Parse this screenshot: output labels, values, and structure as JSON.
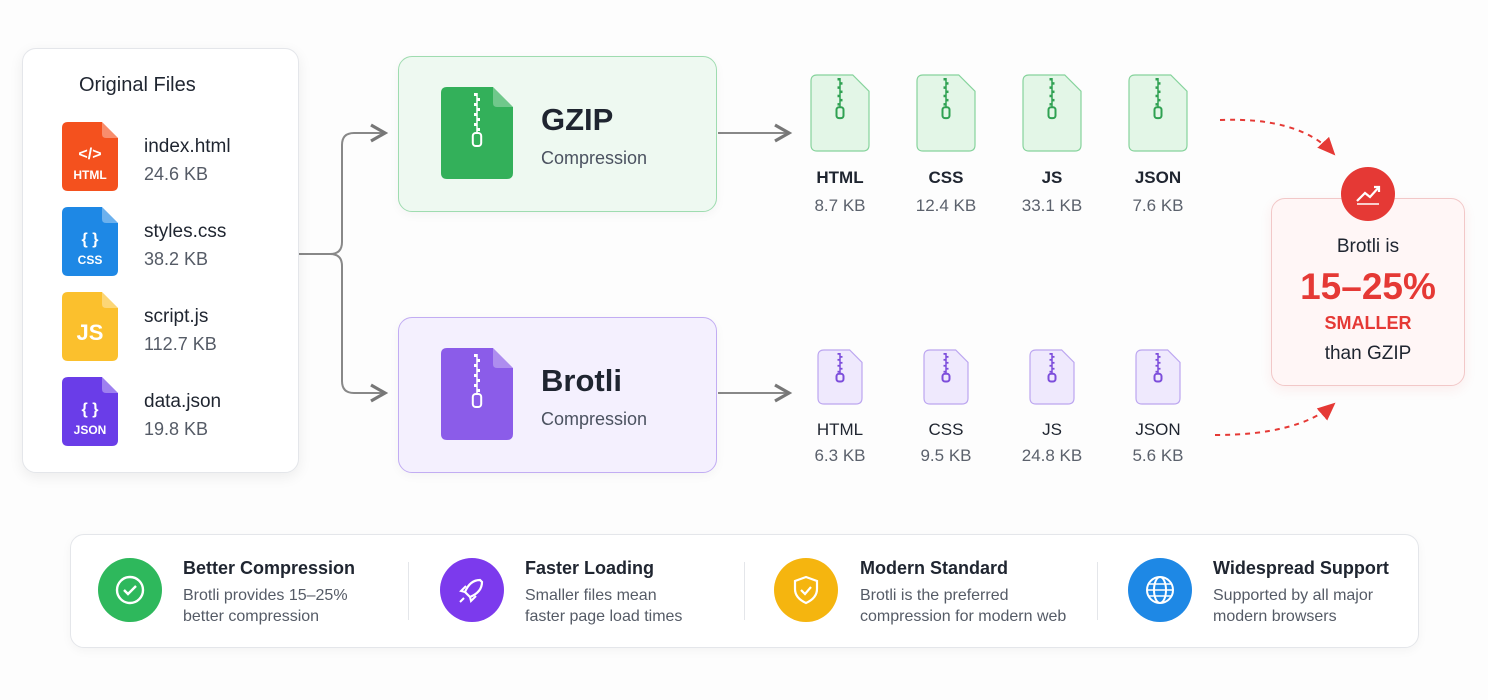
{
  "original_files": {
    "title": "Original Files",
    "files": [
      {
        "icon": "</>",
        "tag": "HTML",
        "name": "index.html",
        "size": "24.6 KB"
      },
      {
        "icon": "{ }",
        "tag": "CSS",
        "name": "styles.css",
        "size": "38.2 KB"
      },
      {
        "icon": "JS",
        "name": "script.js",
        "size": "112.7 KB"
      },
      {
        "icon": "{ }",
        "tag": "JSON",
        "name": "data.json",
        "size": "19.8 KB"
      }
    ]
  },
  "gzip": {
    "title": "GZIP",
    "subtitle": "Compression",
    "outputs": [
      {
        "label": "HTML",
        "size": "8.7 KB"
      },
      {
        "label": "CSS",
        "size": "12.4 KB"
      },
      {
        "label": "JS",
        "size": "33.1 KB"
      },
      {
        "label": "JSON",
        "size": "7.6 KB"
      }
    ]
  },
  "brotli": {
    "title": "Brotli",
    "subtitle": "Compression",
    "outputs": [
      {
        "label": "HTML",
        "size": "6.3 KB"
      },
      {
        "label": "CSS",
        "size": "9.5 KB"
      },
      {
        "label": "JS",
        "size": "24.8 KB"
      },
      {
        "label": "JSON",
        "size": "5.6 KB"
      }
    ]
  },
  "callout": {
    "line1": "Brotli is",
    "highlight": "15–25%",
    "line2": "SMALLER",
    "line3": "than GZIP"
  },
  "features": [
    {
      "title": "Better Compression",
      "description": [
        "Brotli provides 15–25%",
        "better compression"
      ]
    },
    {
      "title": "Faster Loading",
      "description": [
        "Smaller files mean",
        "faster page load times"
      ]
    },
    {
      "title": "Modern Standard",
      "description": [
        "Brotli is the preferred",
        "compression for modern web"
      ]
    },
    {
      "title": "Widespread Support",
      "description": [
        "Supported by all major",
        "modern browsers"
      ]
    }
  ]
}
